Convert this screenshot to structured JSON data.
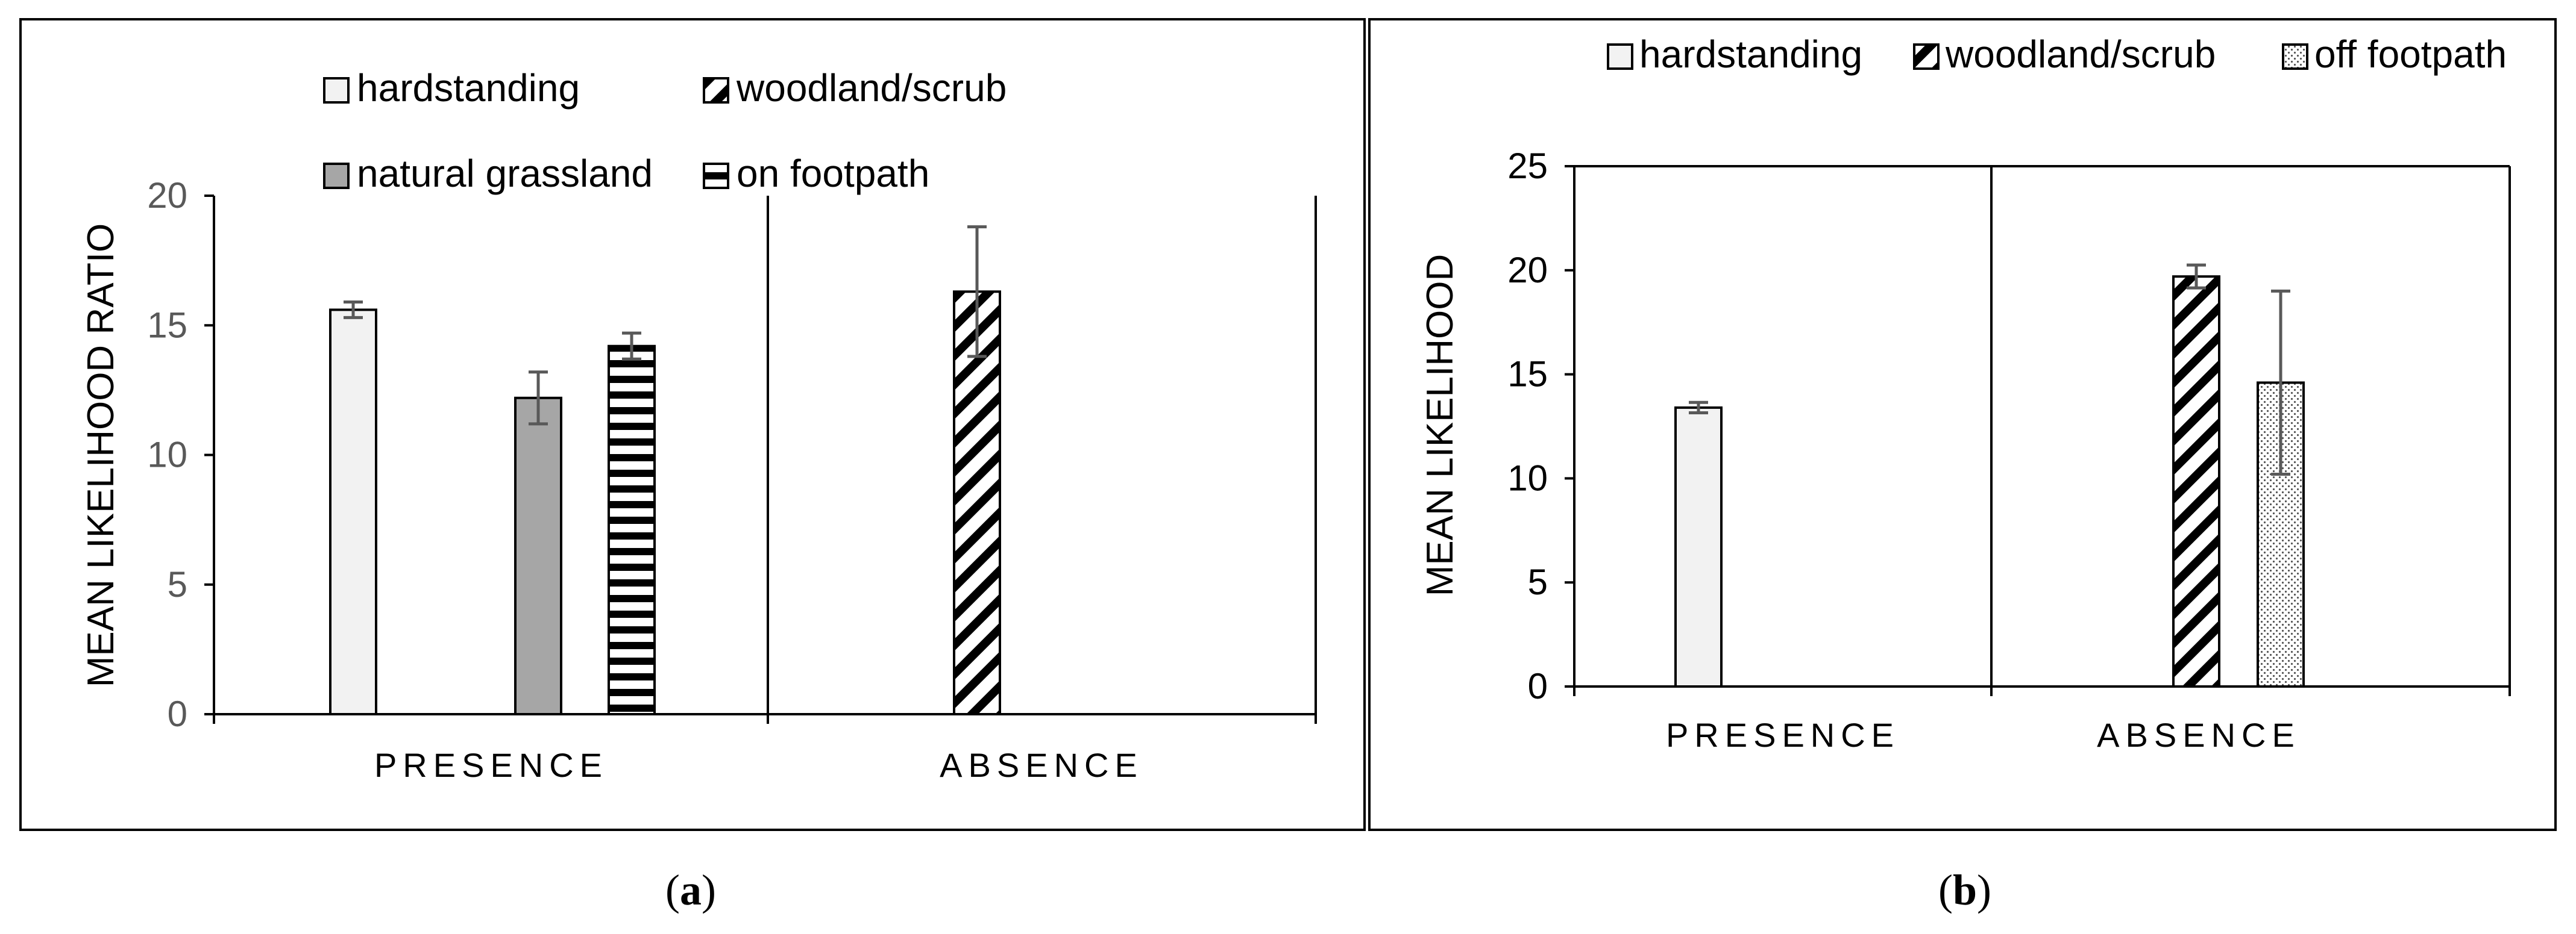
{
  "panels": [
    {
      "label": "a"
    },
    {
      "label": "b"
    }
  ],
  "chart_data": [
    {
      "type": "bar",
      "panel": "a",
      "categories": [
        "PRESENCE",
        "ABSENCE"
      ],
      "ylabel": "MEAN LIKELIHOOD RATIO",
      "xlabel": "",
      "ylim": [
        0,
        20
      ],
      "yticks": [
        0,
        5,
        10,
        15,
        20
      ],
      "grid": false,
      "legend_position": "top",
      "series": [
        {
          "name": "hardstanding",
          "pattern": "light",
          "values": [
            15.6,
            null
          ],
          "errors": [
            0.3,
            null
          ]
        },
        {
          "name": "woodland/scrub",
          "pattern": "diagonal",
          "values": [
            null,
            16.3
          ],
          "errors": [
            null,
            2.5
          ]
        },
        {
          "name": "natural grassland",
          "pattern": "grey",
          "values": [
            12.2,
            null
          ],
          "errors": [
            1.0,
            null
          ]
        },
        {
          "name": "on footpath",
          "pattern": "horizontal",
          "values": [
            14.2,
            null
          ],
          "errors": [
            0.5,
            null
          ]
        }
      ]
    },
    {
      "type": "bar",
      "panel": "b",
      "categories": [
        "PRESENCE",
        "ABSENCE"
      ],
      "ylabel": "MEAN LIKELIHOOD",
      "xlabel": "",
      "ylim": [
        0,
        25
      ],
      "yticks": [
        0,
        5,
        10,
        15,
        20,
        25
      ],
      "grid": false,
      "legend_position": "top",
      "series": [
        {
          "name": "hardstanding",
          "pattern": "light",
          "values": [
            13.4,
            null
          ],
          "errors": [
            0.25,
            null
          ]
        },
        {
          "name": "woodland/scrub",
          "pattern": "diagonal",
          "values": [
            null,
            19.7
          ],
          "errors": [
            null,
            0.55
          ]
        },
        {
          "name": "off footpath",
          "pattern": "dotted",
          "values": [
            null,
            14.6
          ],
          "errors": [
            null,
            4.4
          ]
        }
      ]
    }
  ],
  "colors": {
    "light_fill": "#f2f2f2",
    "grey_fill": "#a6a6a6",
    "axis": "#000000",
    "tick_text": "#595959",
    "error_bar": "#595959"
  }
}
